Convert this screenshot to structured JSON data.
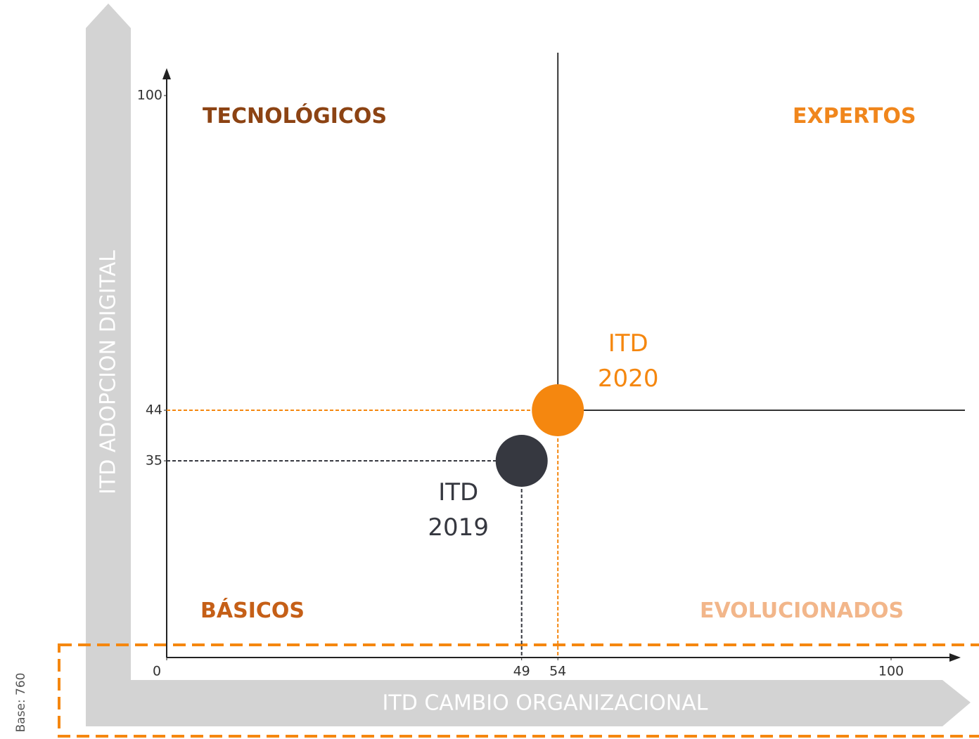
{
  "chart_data": {
    "type": "scatter",
    "x_label": "ITD CAMBIO ORGANIZACIONAL",
    "y_label": "ITD ADOPCION DIGITAL",
    "note": "Base: 760",
    "xlim": [
      0,
      100
    ],
    "ylim": [
      0,
      100
    ],
    "xticks": [
      0,
      49,
      54,
      100
    ],
    "yticks": [
      35,
      44,
      100
    ],
    "series": [
      {
        "name": "ITD 2019",
        "color": "#363840",
        "x": [
          49
        ],
        "values": [
          35
        ]
      },
      {
        "name": "ITD 2020",
        "color": "#f5870f",
        "x": [
          54
        ],
        "values": [
          44
        ]
      }
    ],
    "quadrants": [
      {
        "label": "TECNOLÓGICOS",
        "color": "#8c4313"
      },
      {
        "label": "EXPERTOS",
        "color": "#f0861c"
      },
      {
        "label": "BÁSICOS",
        "color": "#c55f17"
      },
      {
        "label": "EVOLUCIONADOS",
        "color": "#f2b68a"
      }
    ]
  }
}
